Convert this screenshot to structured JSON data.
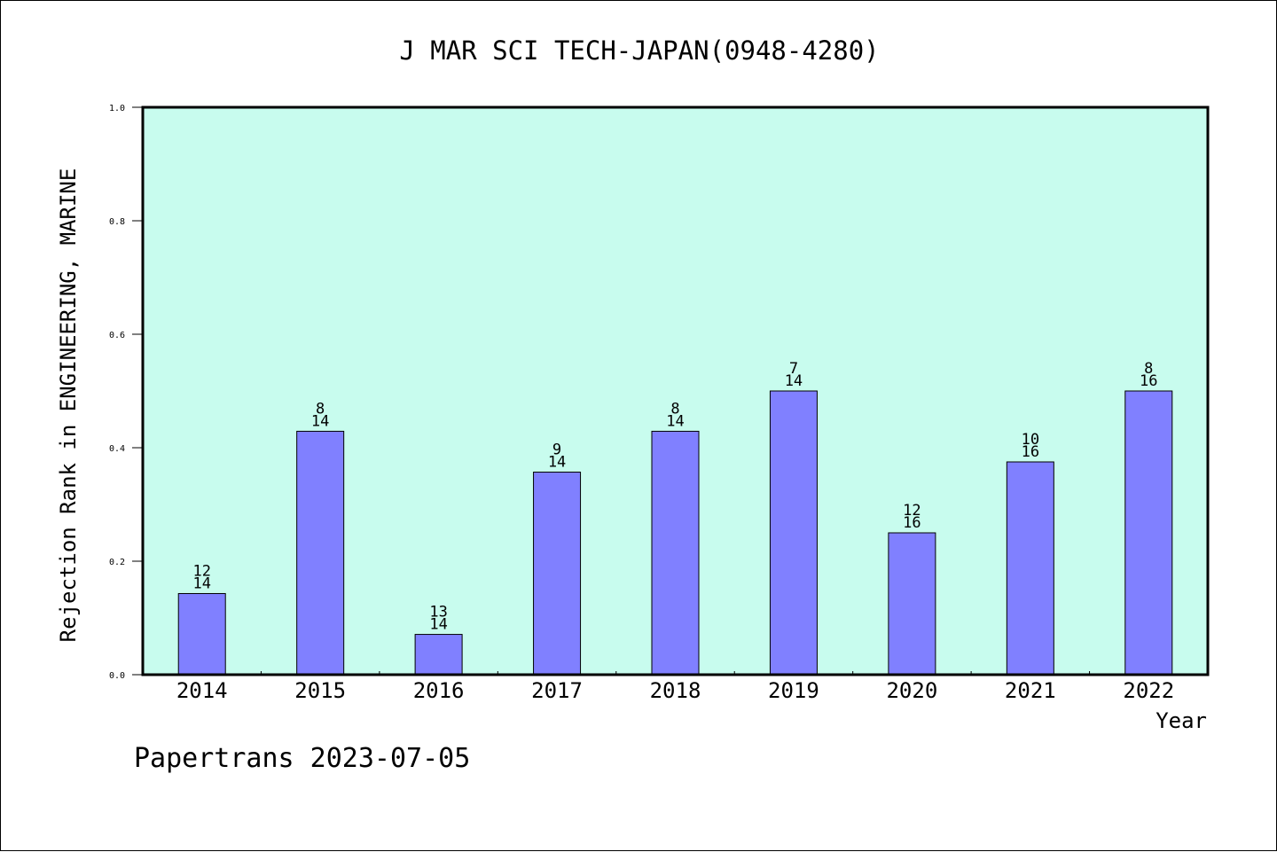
{
  "footer": {
    "text": "Papertrans 2023-07-05"
  },
  "chart_data": {
    "type": "bar",
    "title": "J MAR SCI TECH-JAPAN(0948-4280)",
    "xlabel": "Year",
    "ylabel": "Rejection Rank in ENGINEERING, MARINE",
    "ylim": [
      0,
      1.0
    ],
    "yticks": [
      "0.0",
      "0.2",
      "0.4",
      "0.6",
      "0.8",
      "1.0"
    ],
    "categories": [
      "2014",
      "2015",
      "2016",
      "2017",
      "2018",
      "2019",
      "2020",
      "2021",
      "2022"
    ],
    "values": [
      0.143,
      0.429,
      0.071,
      0.357,
      0.429,
      0.5,
      0.25,
      0.375,
      0.5
    ],
    "label_top": [
      "12",
      "8",
      "13",
      "9",
      "8",
      "7",
      "12",
      "10",
      "8"
    ],
    "label_bottom": [
      "14",
      "14",
      "14",
      "14",
      "14",
      "14",
      "16",
      "16",
      "16"
    ],
    "grid": false,
    "colors": {
      "plot_bg": "#c8fcee",
      "bar": "#8080ff",
      "axis": "#000000"
    }
  }
}
